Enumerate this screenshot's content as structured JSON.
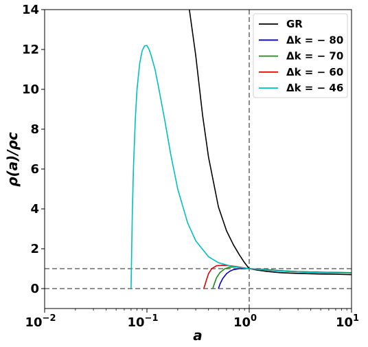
{
  "chart_data": {
    "type": "line",
    "xscale": "log",
    "xlim": [
      0.01,
      10
    ],
    "ylim": [
      -1,
      14
    ],
    "xlabel": "a",
    "ylabel": "ρ(a)/ρc",
    "x_ticks": [
      {
        "value": 0.01,
        "base": "10",
        "exp": "−2"
      },
      {
        "value": 0.1,
        "base": "10",
        "exp": "−1"
      },
      {
        "value": 1,
        "base": "10",
        "exp": "0"
      },
      {
        "value": 10,
        "base": "10",
        "exp": "1"
      }
    ],
    "y_ticks": [
      {
        "value": 0,
        "label": "0"
      },
      {
        "value": 2,
        "label": "2"
      },
      {
        "value": 4,
        "label": "4"
      },
      {
        "value": 6,
        "label": "6"
      },
      {
        "value": 8,
        "label": "8"
      },
      {
        "value": 10,
        "label": "10"
      },
      {
        "value": 12,
        "label": "12"
      },
      {
        "value": 14,
        "label": "14"
      }
    ],
    "reference_lines": [
      {
        "axis": "x",
        "value": 1,
        "color": "#808080",
        "style": "dashed"
      },
      {
        "axis": "y",
        "value": 1,
        "color": "#808080",
        "style": "dashed"
      },
      {
        "axis": "y",
        "value": 0,
        "color": "#808080",
        "style": "dashed"
      }
    ],
    "legend_position": "top-right",
    "series": [
      {
        "name": "GR",
        "color": "#000000",
        "x": [
          0.26,
          0.3,
          0.35,
          0.4,
          0.5,
          0.6,
          0.7,
          0.8,
          0.9,
          1.0,
          1.2,
          1.5,
          2,
          3,
          5,
          7,
          10
        ],
        "y": [
          14.0,
          11.7,
          8.7,
          6.6,
          4.1,
          2.9,
          2.2,
          1.7,
          1.3,
          1.0,
          0.93,
          0.86,
          0.8,
          0.76,
          0.73,
          0.72,
          0.7
        ]
      },
      {
        "name": "Δk = − 80",
        "color": "#0000cc",
        "x": [
          0.5,
          0.52,
          0.55,
          0.6,
          0.65,
          0.7,
          0.8,
          0.9,
          1.0,
          1.5,
          2,
          3,
          5,
          10
        ],
        "y": [
          0.0,
          0.25,
          0.5,
          0.75,
          0.88,
          0.95,
          1.0,
          1.01,
          1.0,
          0.95,
          0.9,
          0.85,
          0.82,
          0.8
        ]
      },
      {
        "name": "Δk = − 70",
        "color": "#1a8a1a",
        "x": [
          0.44,
          0.46,
          0.48,
          0.52,
          0.58,
          0.65,
          0.75,
          0.9,
          1.0,
          1.5,
          2,
          3,
          5,
          10
        ],
        "y": [
          0.0,
          0.3,
          0.55,
          0.82,
          1.0,
          1.08,
          1.08,
          1.03,
          1.0,
          0.95,
          0.9,
          0.85,
          0.82,
          0.8
        ]
      },
      {
        "name": "Δk = − 60",
        "color": "#dd0000",
        "x": [
          0.36,
          0.38,
          0.4,
          0.43,
          0.48,
          0.55,
          0.65,
          0.8,
          1.0,
          1.5,
          2,
          3,
          5,
          10
        ],
        "y": [
          0.0,
          0.4,
          0.75,
          1.0,
          1.15,
          1.17,
          1.15,
          1.08,
          1.0,
          0.93,
          0.88,
          0.84,
          0.8,
          0.78
        ]
      },
      {
        "name": "Δk = − 46",
        "color": "#00bfbf",
        "x": [
          0.07,
          0.071,
          0.072,
          0.074,
          0.077,
          0.08,
          0.085,
          0.09,
          0.095,
          0.1,
          0.105,
          0.11,
          0.12,
          0.13,
          0.15,
          0.17,
          0.2,
          0.25,
          0.3,
          0.4,
          0.5,
          0.7,
          1.0,
          1.5,
          2,
          3,
          5,
          10
        ],
        "y": [
          0.0,
          2.0,
          3.8,
          6.2,
          8.5,
          10.0,
          11.3,
          11.95,
          12.18,
          12.2,
          12.0,
          11.7,
          11.0,
          10.1,
          8.4,
          6.8,
          5.0,
          3.3,
          2.4,
          1.6,
          1.3,
          1.1,
          1.0,
          0.93,
          0.88,
          0.84,
          0.8,
          0.78
        ]
      }
    ]
  }
}
